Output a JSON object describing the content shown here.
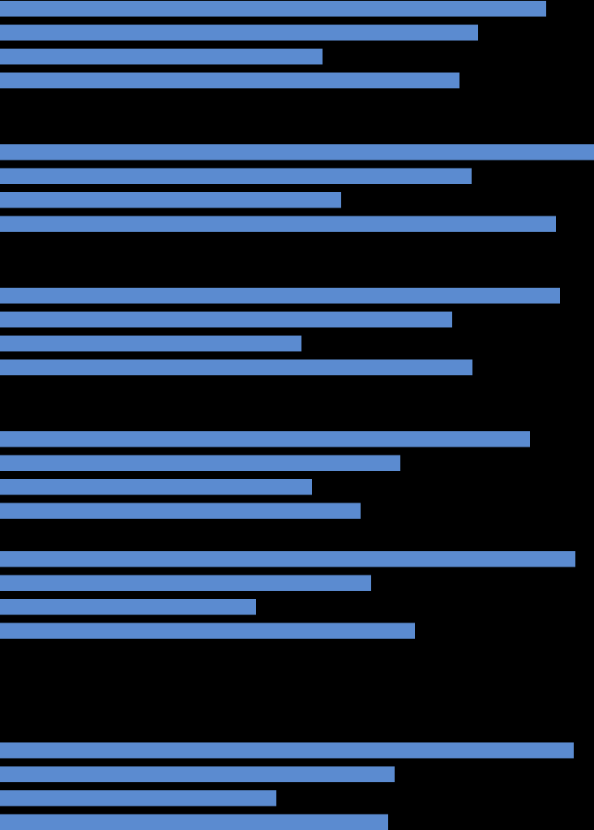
{
  "chart_data": {
    "type": "bar",
    "orientation": "horizontal",
    "categories": [
      null,
      null,
      null,
      null,
      null,
      null,
      null,
      null,
      null,
      null,
      null,
      null,
      null,
      null,
      null,
      null,
      null,
      null,
      null,
      null,
      null,
      null,
      null,
      null
    ],
    "values": [
      674,
      590,
      398,
      567,
      733,
      582,
      421,
      686,
      691,
      558,
      372,
      583,
      654,
      494,
      385,
      445,
      710,
      458,
      316,
      512,
      708,
      487,
      341,
      479
    ],
    "color": "#5b8bd0",
    "xlim": [
      0,
      733
    ]
  }
}
